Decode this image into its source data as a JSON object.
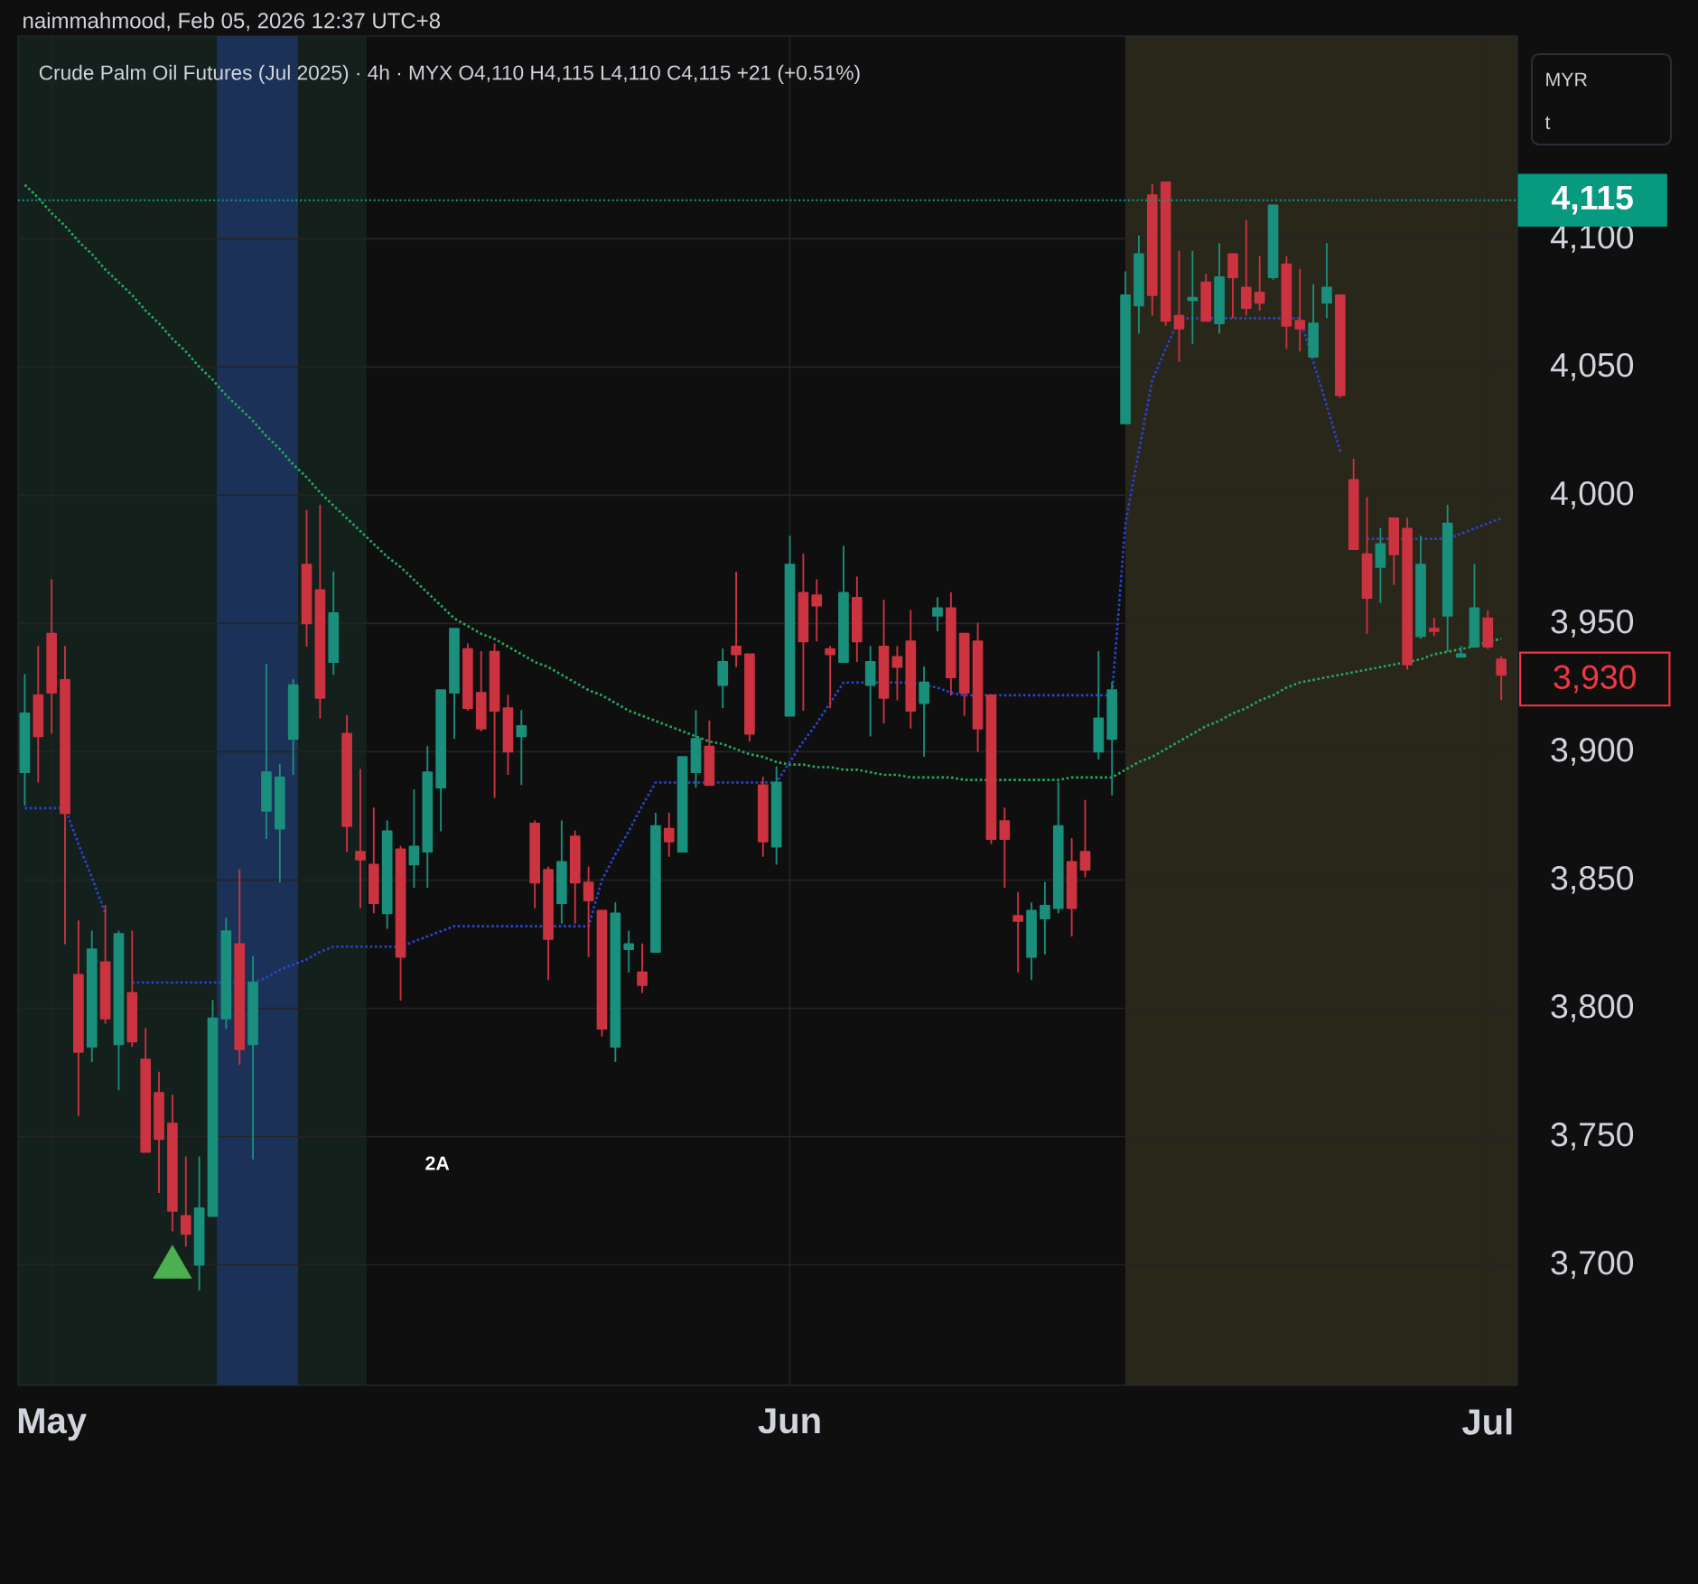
{
  "chart_data": {
    "type": "candlestick",
    "title": "Crude Palm Oil Futures (Jul 2025) · 4h · MYX  O4,110  H4,115  L4,110  C4,115  +21 (+0.51%)",
    "annotations": [
      "naimmahmood, Feb 05, 2026 12:37 UTC+8",
      "MYR",
      "t",
      "2A",
      "3,930"
    ],
    "categories": [
      null,
      null,
      "May",
      null,
      null,
      null,
      null,
      null,
      null,
      null,
      null,
      null,
      null,
      null,
      null,
      null,
      null,
      null,
      null,
      null,
      null,
      null,
      null,
      null,
      null,
      null,
      null,
      null,
      null,
      null,
      null,
      null,
      null,
      null,
      null,
      null,
      null,
      null,
      null,
      null,
      null,
      null,
      null,
      null,
      null,
      null,
      null,
      null,
      null,
      null,
      null,
      null,
      null,
      null,
      null,
      null,
      null,
      "Jun",
      null,
      null,
      null,
      null,
      null,
      null,
      null,
      null,
      null,
      null,
      null,
      null,
      null,
      null,
      null,
      null,
      null,
      null,
      null,
      null,
      null,
      null,
      null,
      null,
      null,
      null,
      null,
      null,
      null,
      null,
      null,
      null,
      null,
      null,
      null,
      null,
      null,
      null,
      null,
      null,
      null,
      null,
      null,
      null,
      null,
      null,
      null,
      null,
      null,
      null,
      null,
      "Jul",
      null
    ],
    "ylim": [
      3653,
      4179
    ],
    "yticks": [
      {
        "value": 3700,
        "label": "3,700"
      },
      {
        "value": 3750,
        "label": "3,750"
      },
      {
        "value": 3800,
        "label": "3,800"
      },
      {
        "value": 3850,
        "label": "3,850"
      },
      {
        "value": 3900,
        "label": "3,900"
      },
      {
        "value": 3950,
        "label": "3,950"
      },
      {
        "value": 4000,
        "label": "4,000"
      },
      {
        "value": 4050,
        "label": "4,050"
      },
      {
        "value": 4100,
        "label": "4,100"
      }
    ],
    "grid": true,
    "ohlc": [
      [
        3892,
        3930,
        3879,
        3915
      ],
      [
        3922,
        3941,
        3888,
        3906
      ],
      [
        3946,
        3967,
        3907,
        3923
      ],
      [
        3928,
        3941,
        3825,
        3876
      ],
      [
        3813,
        3834,
        3758,
        3783
      ],
      [
        3785,
        3830,
        3779,
        3823
      ],
      [
        3818,
        3840,
        3794,
        3796
      ],
      [
        3786,
        3830,
        3768,
        3829
      ],
      [
        3806,
        3830,
        3785,
        3787
      ],
      [
        3780,
        3792,
        3744,
        3744
      ],
      [
        3767,
        3775,
        3728,
        3749
      ],
      [
        3755,
        3766,
        3713,
        3721
      ],
      [
        3719,
        3742,
        3707,
        3712
      ],
      [
        3700,
        3742,
        3690,
        3722
      ],
      [
        3719,
        3803,
        3719,
        3796
      ],
      [
        3796,
        3835,
        3792,
        3830
      ],
      [
        3825,
        3854,
        3778,
        3784
      ],
      [
        3786,
        3820,
        3741,
        3810
      ],
      [
        3877,
        3934,
        3866,
        3892
      ],
      [
        3870,
        3895,
        3849,
        3890
      ],
      [
        3905,
        3928,
        3891,
        3926
      ],
      [
        3973,
        3994,
        3941,
        3950
      ],
      [
        3963,
        3996,
        3913,
        3921
      ],
      [
        3935,
        3970,
        3930,
        3954
      ],
      [
        3907,
        3914,
        3861,
        3871
      ],
      [
        3861,
        3893,
        3839,
        3858
      ],
      [
        3856,
        3878,
        3837,
        3841
      ],
      [
        3837,
        3873,
        3831,
        3869
      ],
      [
        3862,
        3863,
        3803,
        3820
      ],
      [
        3856,
        3885,
        3847,
        3863
      ],
      [
        3861,
        3902,
        3847,
        3892
      ],
      [
        3886,
        3924,
        3869,
        3924
      ],
      [
        3923,
        3948,
        3905,
        3948
      ],
      [
        3940,
        3942,
        3916,
        3917
      ],
      [
        3923,
        3939,
        3908,
        3909
      ],
      [
        3939,
        3942,
        3882,
        3916
      ],
      [
        3917,
        3922,
        3891,
        3900
      ],
      [
        3906,
        3916,
        3887,
        3910
      ],
      [
        3872,
        3873,
        3839,
        3849
      ],
      [
        3854,
        3855,
        3811,
        3827
      ],
      [
        3841,
        3873,
        3833,
        3857
      ],
      [
        3867,
        3869,
        3833,
        3849
      ],
      [
        3849,
        3855,
        3820,
        3842
      ],
      [
        3838,
        3838,
        3789,
        3792
      ],
      [
        3785,
        3841,
        3779,
        3837
      ],
      [
        3823,
        3830,
        3814,
        3825
      ],
      [
        3814,
        3825,
        3806,
        3809
      ],
      [
        3822,
        3876,
        3822,
        3871
      ],
      [
        3870,
        3876,
        3859,
        3865
      ],
      [
        3861,
        3898,
        3861,
        3898
      ],
      [
        3892,
        3916,
        3886,
        3905
      ],
      [
        3902,
        3912,
        3887,
        3887
      ],
      [
        3926,
        3940,
        3917,
        3935
      ],
      [
        3941,
        3970,
        3933,
        3938
      ],
      [
        3938,
        3938,
        3904,
        3907
      ],
      [
        3887,
        3890,
        3859,
        3865
      ],
      [
        3863,
        3894,
        3856,
        3888
      ],
      [
        3914,
        3984,
        3914,
        3973
      ],
      [
        3962,
        3977,
        3916,
        3943
      ],
      [
        3961,
        3967,
        3943,
        3957
      ],
      [
        3940,
        3941,
        3917,
        3938
      ],
      [
        3935,
        3980,
        3935,
        3962
      ],
      [
        3960,
        3968,
        3935,
        3943
      ],
      [
        3926,
        3941,
        3906,
        3935
      ],
      [
        3941,
        3959,
        3911,
        3921
      ],
      [
        3937,
        3941,
        3920,
        3933
      ],
      [
        3943,
        3955,
        3909,
        3916
      ],
      [
        3919,
        3933,
        3898,
        3927
      ],
      [
        3953,
        3960,
        3947,
        3956
      ],
      [
        3956,
        3962,
        3922,
        3929
      ],
      [
        3946,
        3946,
        3914,
        3923
      ],
      [
        3943,
        3950,
        3900,
        3909
      ],
      [
        3922,
        3922,
        3864,
        3866
      ],
      [
        3873,
        3878,
        3847,
        3866
      ],
      [
        3836,
        3845,
        3814,
        3834
      ],
      [
        3820,
        3841,
        3811,
        3838
      ],
      [
        3835,
        3849,
        3821,
        3840
      ],
      [
        3839,
        3888,
        3837,
        3871
      ],
      [
        3857,
        3866,
        3828,
        3839
      ],
      [
        3861,
        3881,
        3851,
        3854
      ],
      [
        3900,
        3939,
        3897,
        3913
      ],
      [
        3905,
        3927,
        3883,
        3924
      ],
      [
        4028,
        4087,
        4028,
        4078
      ],
      [
        4074,
        4101,
        4063,
        4094
      ],
      [
        4117,
        4121,
        4070,
        4078
      ],
      [
        4122,
        4122,
        4066,
        4068
      ],
      [
        4070,
        4095,
        4052,
        4065
      ],
      [
        4076,
        4095,
        4059,
        4077
      ],
      [
        4083,
        4086,
        4068,
        4068
      ],
      [
        4067,
        4098,
        4063,
        4085
      ],
      [
        4094,
        4094,
        4069,
        4085
      ],
      [
        4081,
        4107,
        4070,
        4073
      ],
      [
        4079,
        4093,
        4072,
        4075
      ],
      [
        4085,
        4113,
        4084,
        4113
      ],
      [
        4090,
        4093,
        4057,
        4066
      ],
      [
        4068,
        4088,
        4056,
        4065
      ],
      [
        4054,
        4082,
        4054,
        4067
      ],
      [
        4075,
        4098,
        4069,
        4081
      ],
      [
        4078,
        4078,
        4038,
        4039
      ],
      [
        4006,
        4014,
        3979,
        3979
      ],
      [
        3977,
        3999,
        3946,
        3960
      ],
      [
        3972,
        3987,
        3958,
        3981
      ],
      [
        3991,
        3991,
        3965,
        3977
      ],
      [
        3987,
        3991,
        3932,
        3934
      ],
      [
        3945,
        3984,
        3944,
        3973
      ],
      [
        3948,
        3952,
        3945,
        3947
      ],
      [
        3953,
        3996,
        3939,
        3989
      ],
      [
        3937,
        3941,
        3937,
        3938
      ],
      [
        3941,
        3973,
        3941,
        3956
      ],
      [
        3952,
        3955,
        3940,
        3941
      ],
      [
        3936,
        3937,
        3920,
        3930
      ]
    ],
    "colors": [
      "#1a8f7c",
      "#cc3340",
      "#cc3340",
      "#cc3340",
      "#cc3340",
      "#1a8f7c",
      "#cc3340",
      "#1a8f7c",
      "#cc3340",
      "#cc3340",
      "#cc3340",
      "#cc3340",
      "#cc3340",
      "#1a8f7c",
      "#1a8f7c",
      "#1a8f7c",
      "#cc3340",
      "#1a8f7c",
      "#1a8f7c",
      "#1a8f7c",
      "#1a8f7c",
      "#cc3340",
      "#cc3340",
      "#1a8f7c",
      "#cc3340",
      "#cc3340",
      "#cc3340",
      "#1a8f7c",
      "#cc3340",
      "#1a8f7c",
      "#1a8f7c",
      "#1a8f7c",
      "#1a8f7c",
      "#cc3340",
      "#cc3340",
      "#cc3340",
      "#cc3340",
      "#1a8f7c",
      "#cc3340",
      "#cc3340",
      "#1a8f7c",
      "#cc3340",
      "#cc3340",
      "#cc3340",
      "#1a8f7c",
      "#1a8f7c",
      "#cc3340",
      "#1a8f7c",
      "#cc3340",
      "#1a8f7c",
      "#1a8f7c",
      "#cc3340",
      "#1a8f7c",
      "#cc3340",
      "#cc3340",
      "#cc3340",
      "#1a8f7c",
      "#1a8f7c",
      "#cc3340",
      "#cc3340",
      "#cc3340",
      "#1a8f7c",
      "#cc3340",
      "#1a8f7c",
      "#cc3340",
      "#cc3340",
      "#cc3340",
      "#1a8f7c",
      "#1a8f7c",
      "#cc3340",
      "#cc3340",
      "#cc3340",
      "#cc3340",
      "#cc3340",
      "#cc3340",
      "#1a8f7c",
      "#1a8f7c",
      "#1a8f7c",
      "#cc3340",
      "#cc3340",
      "#1a8f7c",
      "#1a8f7c",
      "#1a8f7c",
      "#1a8f7c",
      "#cc3340",
      "#cc3340",
      "#cc3340",
      "#1a8f7c",
      "#cc3340",
      "#1a8f7c",
      "#cc3340",
      "#cc3340",
      "#cc3340",
      "#1a8f7c",
      "#cc3340",
      "#cc3340",
      "#1a8f7c",
      "#1a8f7c",
      "#cc3340",
      "#cc3340",
      "#cc3340",
      "#1a8f7c",
      "#cc3340",
      "#cc3340",
      "#1a8f7c",
      "#cc3340",
      "#1a8f7c",
      "#1a8f7c",
      "#1a8f7c",
      "#cc3340",
      "#cc3340"
    ],
    "series": [
      {
        "type": "line",
        "color": "#26a65b",
        "line_style": "dotted",
        "values": [
          4121,
          4116,
          4110,
          4105,
          4099,
          4094,
          4088,
          4083,
          4078,
          4072,
          4067,
          4061,
          4056,
          4050,
          4045,
          4039,
          4034,
          4029,
          4023,
          4018,
          4012,
          4007,
          4001,
          3996,
          3991,
          3986,
          3981,
          3976,
          3972,
          3967,
          3962,
          3957,
          3952,
          3949,
          3946,
          3944,
          3941,
          3938,
          3935,
          3933,
          3930,
          3927,
          3924,
          3922,
          3919,
          3916,
          3914,
          3912,
          3910,
          3908,
          3906,
          3904,
          3903,
          3901,
          3899,
          3898,
          3896,
          3895,
          3895,
          3894,
          3894,
          3893,
          3893,
          3892,
          3891,
          3891,
          3890,
          3890,
          3890,
          3890,
          3889,
          3889,
          3889,
          3889,
          3889,
          3889,
          3889,
          3889,
          3890,
          3890,
          3890,
          3890,
          3893,
          3896,
          3898,
          3901,
          3904,
          3907,
          3910,
          3912,
          3915,
          3917,
          3920,
          3922,
          3925,
          3927,
          3928,
          3929,
          3930,
          3931,
          3932,
          3933,
          3934,
          3935,
          3936,
          3938,
          3939,
          3940,
          3941,
          3943,
          3944
        ]
      },
      {
        "type": "line",
        "color": "#2a44d0",
        "line_style": "dotted",
        "values": [
          3878,
          3878,
          3878,
          3878,
          3864,
          3851,
          3837,
          null,
          3810,
          3810,
          3810,
          3810,
          3810,
          3810,
          3810,
          3810,
          3810,
          3810,
          3812,
          3815,
          3817,
          3819,
          3822,
          3824,
          3824,
          3824,
          3824,
          3824,
          3824,
          3826,
          3828,
          3830,
          3832,
          3832,
          3832,
          3832,
          3832,
          3832,
          3832,
          3832,
          3832,
          3832,
          3832,
          3850,
          3860,
          3869,
          3879,
          3888,
          3888,
          3888,
          3888,
          3888,
          3888,
          3888,
          3888,
          3888,
          3888,
          3896,
          3904,
          3911,
          3919,
          3927,
          3927,
          3927,
          3927,
          3927,
          3927,
          3926,
          3925,
          3923,
          3922,
          3922,
          3922,
          3922,
          3922,
          3922,
          3922,
          3922,
          3922,
          3922,
          3922,
          3922,
          3989,
          4017,
          4045,
          4057,
          4069,
          4069,
          4069,
          4069,
          4069,
          4069,
          4069,
          4069,
          4069,
          4069,
          4052,
          4035,
          4017,
          null,
          3983,
          3983,
          3983,
          3983,
          3983,
          3983,
          3983,
          3985,
          3987,
          3989,
          3991
        ]
      },
      {
        "type": "scatter",
        "marker": "triangle",
        "color": "#4caf50",
        "values": [
          null,
          null,
          null,
          null,
          null,
          null,
          null,
          null,
          null,
          null,
          null,
          3699,
          null,
          null,
          null,
          null,
          null,
          null,
          null,
          null,
          null,
          null,
          null,
          null,
          null,
          null,
          null,
          null,
          null,
          null,
          null,
          null,
          null,
          null,
          null,
          null,
          null,
          null,
          null,
          null,
          null,
          null,
          null,
          null,
          null,
          null,
          null,
          null,
          null,
          null,
          null,
          null,
          null,
          null,
          null,
          null,
          null,
          null,
          null,
          null,
          null,
          null,
          null,
          null,
          null,
          null,
          null,
          null,
          null,
          null,
          null,
          null,
          null,
          null,
          null,
          null,
          null,
          null,
          null,
          null,
          null,
          null,
          null,
          null,
          null,
          null,
          null,
          null,
          null,
          null,
          null,
          null,
          null,
          null,
          null,
          null,
          null,
          null,
          null,
          null,
          null,
          null,
          null,
          null,
          null,
          null,
          null,
          null,
          null,
          null,
          null
        ]
      }
    ],
    "ref_lines": [
      {
        "axis": "y",
        "value": 4115,
        "label": "4,115",
        "color": "#089981",
        "line_style": "dotted"
      }
    ]
  }
}
